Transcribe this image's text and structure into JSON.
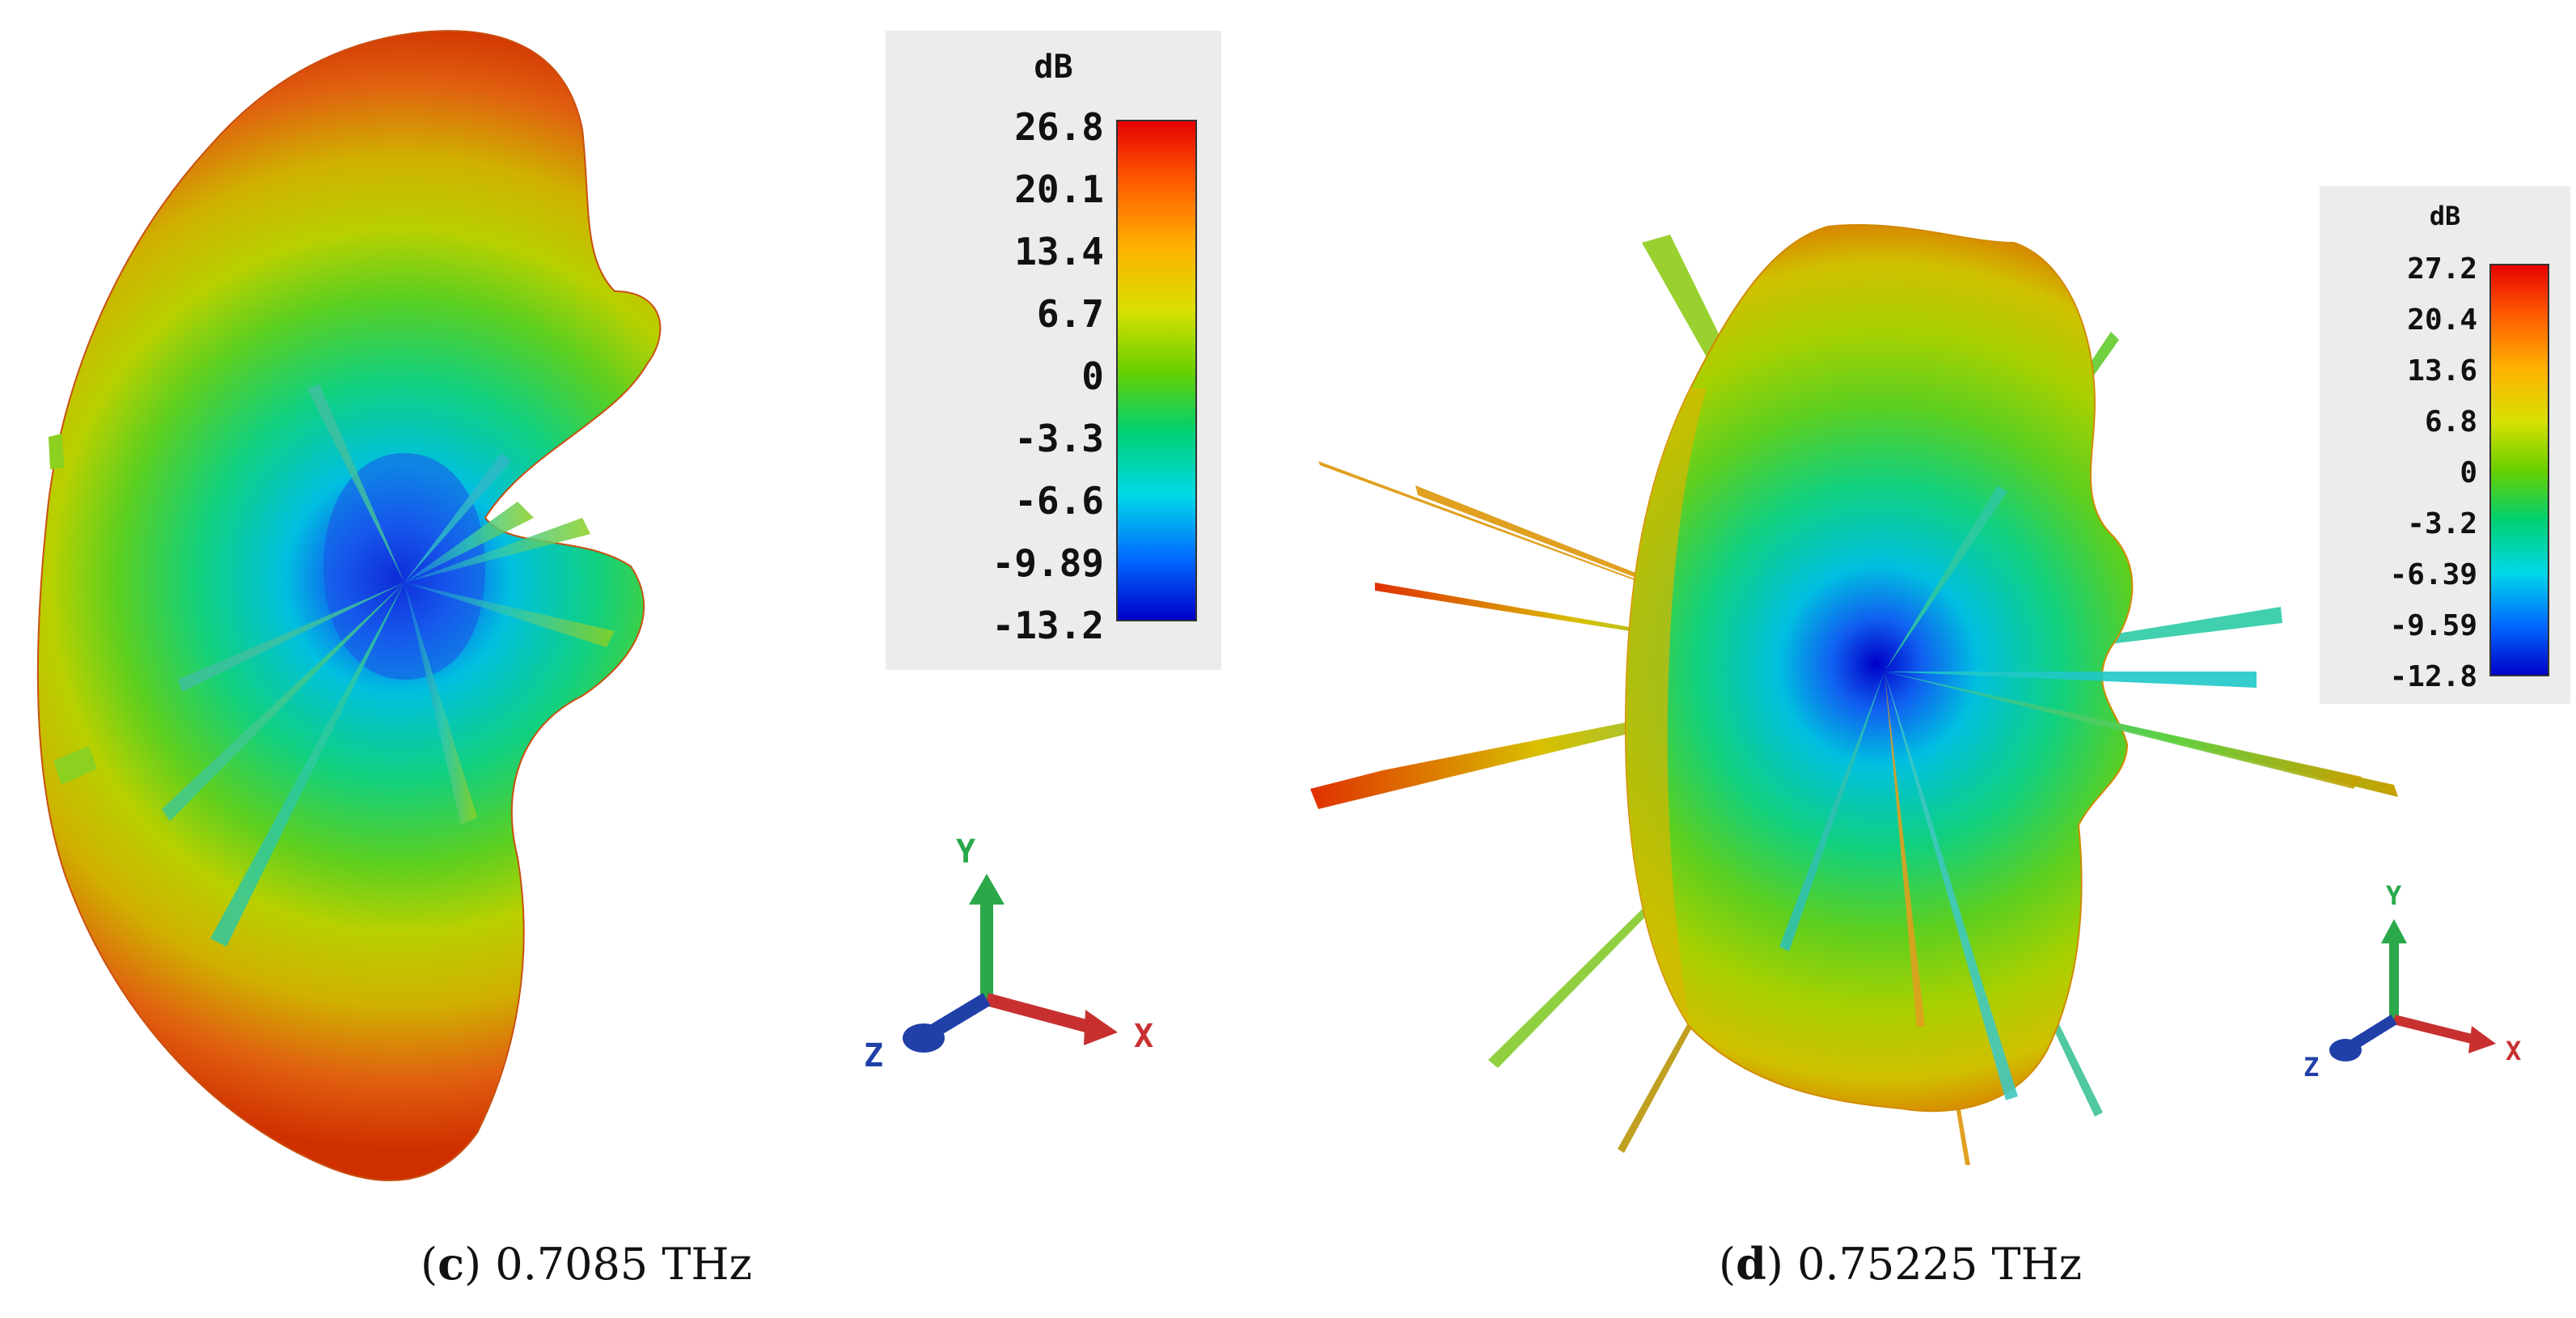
{
  "panels": [
    {
      "id": "c",
      "caption": {
        "open": "(",
        "letter": "c",
        "close": ")",
        "text": " 0.7085 THz"
      },
      "legend": {
        "title": "dB",
        "ticks": [
          "26.8",
          "20.1",
          "13.4",
          "6.7",
          "0",
          "-3.3",
          "-6.6",
          "-9.89",
          "-13.2"
        ]
      },
      "axes": {
        "x": "X",
        "y": "Y",
        "z": "Z"
      }
    },
    {
      "id": "d",
      "caption": {
        "open": "(",
        "letter": "d",
        "close": ")",
        "text": " 0.75225 THz"
      },
      "legend": {
        "title": "dB",
        "ticks": [
          "27.2",
          "20.4",
          "13.6",
          "6.8",
          "0",
          "-3.2",
          "-6.39",
          "-9.59",
          "-12.8"
        ]
      },
      "axes": {
        "x": "X",
        "y": "Y",
        "z": "Z"
      }
    }
  ],
  "colors": {
    "colormap": [
      "#0000c8",
      "#0066ff",
      "#00d8e8",
      "#00d070",
      "#6ad000",
      "#d8e000",
      "#ffb000",
      "#ff5a00",
      "#e60000"
    ],
    "x_axis": "#c83030",
    "y_axis": "#2aa84a",
    "z_axis": "#2040a8",
    "legend_background": "#ececec"
  }
}
